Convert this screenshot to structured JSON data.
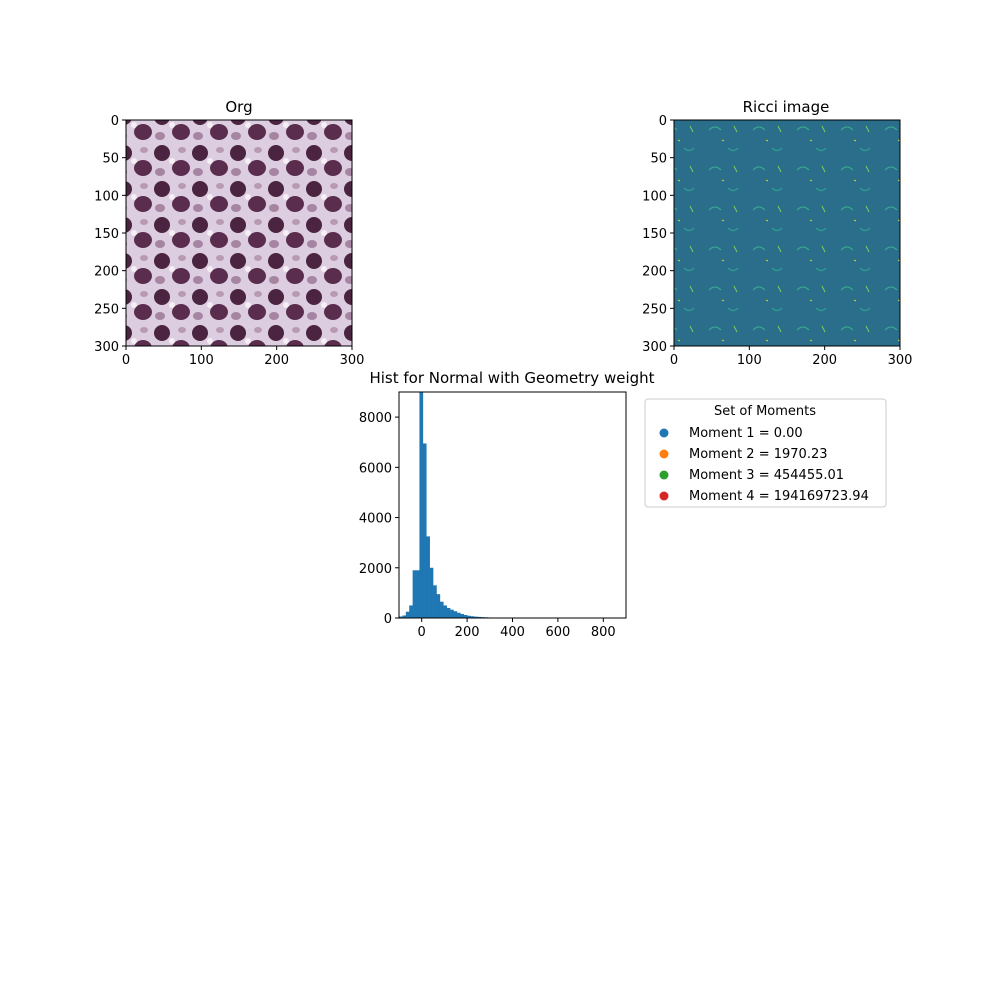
{
  "chart_data": [
    {
      "type": "image",
      "title": "Org",
      "x_ticks": [
        "0",
        "100",
        "200",
        "300"
      ],
      "y_ticks": [
        "0",
        "50",
        "100",
        "150",
        "200",
        "250",
        "300"
      ],
      "xlim": [
        0,
        300
      ],
      "ylim": [
        300,
        0
      ],
      "colormap": "purple H&E stained tissue (nuclei)"
    },
    {
      "type": "image",
      "title": "Ricci image",
      "x_ticks": [
        "0",
        "100",
        "200",
        "300"
      ],
      "y_ticks": [
        "0",
        "50",
        "100",
        "150",
        "200",
        "250",
        "300"
      ],
      "xlim": [
        0,
        300
      ],
      "ylim": [
        300,
        0
      ],
      "colormap": "viridis"
    },
    {
      "type": "bar",
      "title": "Hist for Normal with Geometry weight",
      "x_ticks": [
        "0",
        "200",
        "400",
        "600",
        "800"
      ],
      "y_ticks": [
        "0",
        "2000",
        "4000",
        "6000",
        "8000"
      ],
      "xlim": [
        -100,
        900
      ],
      "ylim": [
        0,
        9000
      ],
      "bin_width": 15,
      "bins": [
        {
          "x": -100,
          "count": 60
        },
        {
          "x": -85,
          "count": 100
        },
        {
          "x": -70,
          "count": 250
        },
        {
          "x": -55,
          "count": 500
        },
        {
          "x": -40,
          "count": 1900
        },
        {
          "x": -25,
          "count": 1900
        },
        {
          "x": -10,
          "count": 9000
        },
        {
          "x": 5,
          "count": 6950
        },
        {
          "x": 20,
          "count": 3250
        },
        {
          "x": 35,
          "count": 2000
        },
        {
          "x": 50,
          "count": 1300
        },
        {
          "x": 65,
          "count": 950
        },
        {
          "x": 80,
          "count": 650
        },
        {
          "x": 95,
          "count": 500
        },
        {
          "x": 110,
          "count": 400
        },
        {
          "x": 125,
          "count": 330
        },
        {
          "x": 140,
          "count": 270
        },
        {
          "x": 155,
          "count": 210
        },
        {
          "x": 170,
          "count": 160
        },
        {
          "x": 185,
          "count": 120
        },
        {
          "x": 200,
          "count": 90
        },
        {
          "x": 215,
          "count": 70
        },
        {
          "x": 230,
          "count": 55
        },
        {
          "x": 245,
          "count": 45
        },
        {
          "x": 260,
          "count": 35
        },
        {
          "x": 275,
          "count": 28
        },
        {
          "x": 290,
          "count": 22
        },
        {
          "x": 305,
          "count": 18
        },
        {
          "x": 320,
          "count": 14
        },
        {
          "x": 335,
          "count": 10
        },
        {
          "x": 350,
          "count": 8
        },
        {
          "x": 365,
          "count": 6
        },
        {
          "x": 380,
          "count": 5
        },
        {
          "x": 395,
          "count": 4
        },
        {
          "x": 410,
          "count": 3
        },
        {
          "x": 425,
          "count": 3
        },
        {
          "x": 440,
          "count": 2
        },
        {
          "x": 455,
          "count": 2
        },
        {
          "x": 470,
          "count": 2
        },
        {
          "x": 485,
          "count": 1
        },
        {
          "x": 500,
          "count": 1
        }
      ],
      "bar_color": "#1f77b4"
    },
    {
      "type": "legend",
      "title": "Set of Moments",
      "entries": [
        {
          "label": "Moment 1 = 0.00",
          "color": "#1f77b4"
        },
        {
          "label": "Moment 2 = 1970.23",
          "color": "#ff7f0e"
        },
        {
          "label": "Moment 3 = 454455.01",
          "color": "#2ca02c"
        },
        {
          "label": "Moment 4 = 194169723.94",
          "color": "#d62728"
        }
      ]
    }
  ]
}
